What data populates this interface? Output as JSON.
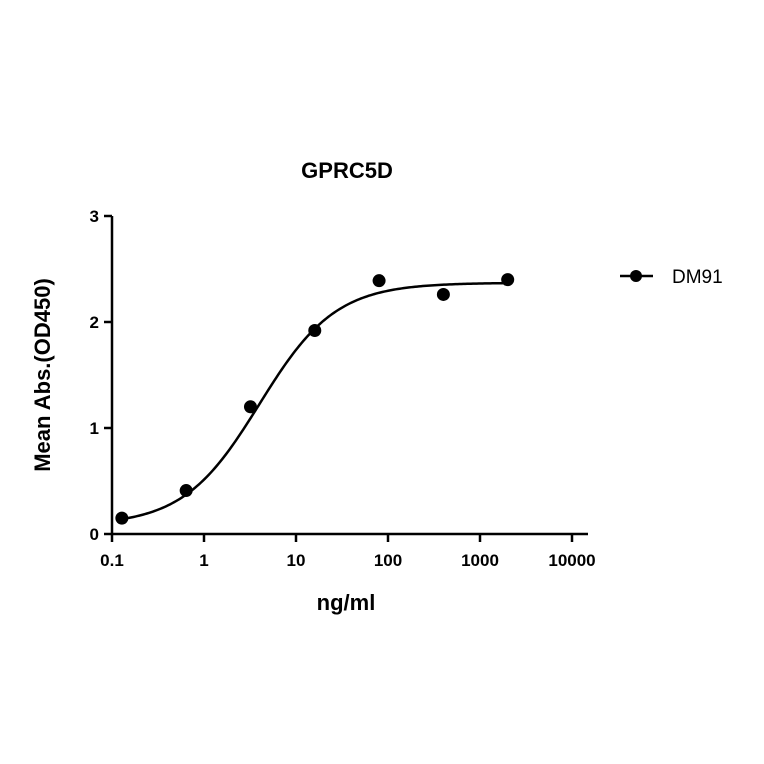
{
  "chart_data": {
    "type": "scatter",
    "title": "GPRC5D",
    "xlabel": "ng/ml",
    "ylabel": "Mean Abs.(OD450)",
    "xscale": "log",
    "xlim": [
      0.1,
      10000
    ],
    "ylim": [
      0,
      3
    ],
    "xticks": [
      "0.1",
      "1",
      "10",
      "100",
      "1000",
      "10000"
    ],
    "yticks": [
      "0",
      "1",
      "2",
      "3"
    ],
    "grid": false,
    "legend_position": "right",
    "series": [
      {
        "name": "DM91",
        "marker": "circle",
        "color": "#000000",
        "x": [
          0.128,
          0.64,
          3.2,
          16,
          80,
          400,
          2000
        ],
        "y": [
          0.15,
          0.41,
          1.2,
          1.92,
          2.39,
          2.26,
          2.4
        ],
        "fit": "4PL sigmoid",
        "fit_params": {
          "bottom": 0.08,
          "top": 2.37,
          "ec50": 4.0,
          "hill": 1.05
        }
      }
    ]
  }
}
